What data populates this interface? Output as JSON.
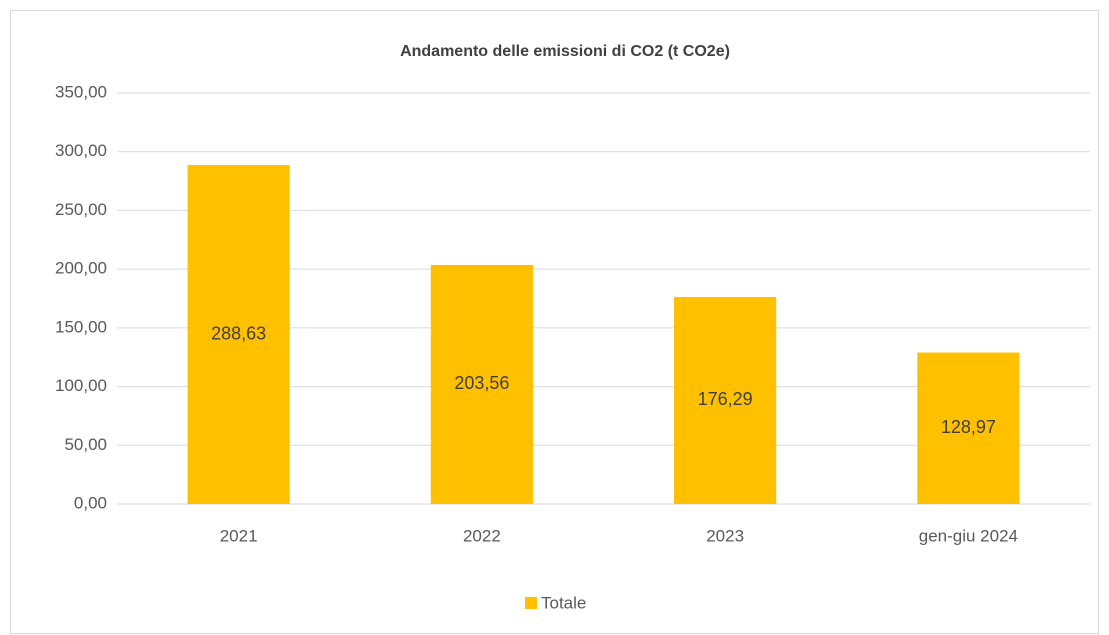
{
  "chart_data": {
    "type": "bar",
    "title": "Andamento delle emissioni di CO2 (t CO2e)",
    "categories": [
      "2021",
      "2022",
      "2023",
      "gen-giu 2024"
    ],
    "series": [
      {
        "name": "Totale",
        "color": "#ffc000",
        "values": [
          288.63,
          203.56,
          176.29,
          128.97
        ],
        "value_labels": [
          "288,63",
          "203,56",
          "176,29",
          "128,97"
        ]
      }
    ],
    "ylim": [
      0,
      350
    ],
    "yticks": [
      {
        "value": 0,
        "label": "0,00"
      },
      {
        "value": 50,
        "label": "50,00"
      },
      {
        "value": 100,
        "label": "100,00"
      },
      {
        "value": 150,
        "label": "150,00"
      },
      {
        "value": 200,
        "label": "200,00"
      },
      {
        "value": 250,
        "label": "250,00"
      },
      {
        "value": 300,
        "label": "300,00"
      },
      {
        "value": 350,
        "label": "350,00"
      }
    ],
    "grid": true,
    "legend": "bottom"
  }
}
